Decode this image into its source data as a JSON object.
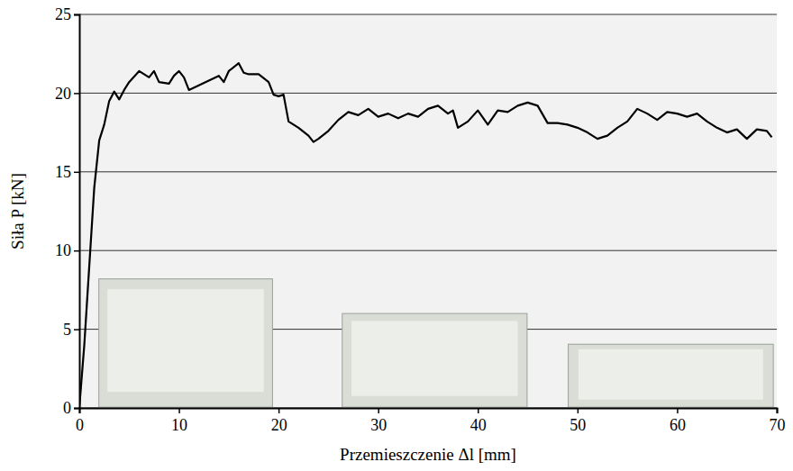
{
  "chart_data": {
    "type": "line",
    "x_label": "Przemieszczenie Δl [mm]",
    "y_label": "Siła P [kN]",
    "x": [
      0,
      0.5,
      1,
      1.5,
      2,
      2.5,
      3,
      3.5,
      4,
      4.5,
      5,
      6,
      7,
      7.5,
      8,
      9,
      9.5,
      10,
      10.5,
      11,
      12,
      13,
      14,
      14.5,
      15,
      16,
      16.5,
      17,
      18,
      19,
      19.5,
      20,
      20.5,
      21,
      22,
      23,
      23.5,
      24,
      25,
      26,
      27,
      28,
      29,
      30,
      31,
      32,
      33,
      34,
      35,
      36,
      37,
      37.5,
      38,
      39,
      40,
      41,
      42,
      43,
      44,
      45,
      46,
      47,
      48,
      49,
      50,
      51,
      52,
      53,
      54,
      55,
      56,
      57,
      58,
      59,
      60,
      61,
      62,
      63,
      64,
      65,
      66,
      67,
      68,
      69,
      69.5
    ],
    "values": [
      0,
      4,
      9,
      14,
      17,
      18,
      19.5,
      20.1,
      19.6,
      20.2,
      20.7,
      21.4,
      21,
      21.4,
      20.7,
      20.6,
      21.1,
      21.4,
      21,
      20.2,
      20.5,
      20.8,
      21.1,
      20.7,
      21.4,
      21.9,
      21.3,
      21.2,
      21.2,
      20.7,
      19.9,
      19.8,
      19.9,
      18.2,
      17.8,
      17.3,
      16.9,
      17.1,
      17.6,
      18.3,
      18.8,
      18.6,
      19,
      18.5,
      18.7,
      18.4,
      18.7,
      18.5,
      19,
      19.2,
      18.7,
      18.9,
      17.8,
      18.2,
      18.9,
      18,
      18.9,
      18.8,
      19.2,
      19.4,
      19.2,
      18.1,
      18.1,
      18,
      17.8,
      17.5,
      17.1,
      17.3,
      17.8,
      18.2,
      19,
      18.7,
      18.3,
      18.8,
      18.7,
      18.5,
      18.7,
      18.2,
      17.8,
      17.5,
      17.7,
      17.1,
      17.7,
      17.6,
      17.2
    ],
    "color": "#000000",
    "xlim": [
      0,
      70
    ],
    "xticks": [
      0,
      10,
      20,
      30,
      40,
      50,
      60,
      70
    ],
    "ylim": [
      0,
      25
    ],
    "yticks": [
      0,
      5,
      10,
      15,
      20,
      25
    ],
    "grid": true
  }
}
